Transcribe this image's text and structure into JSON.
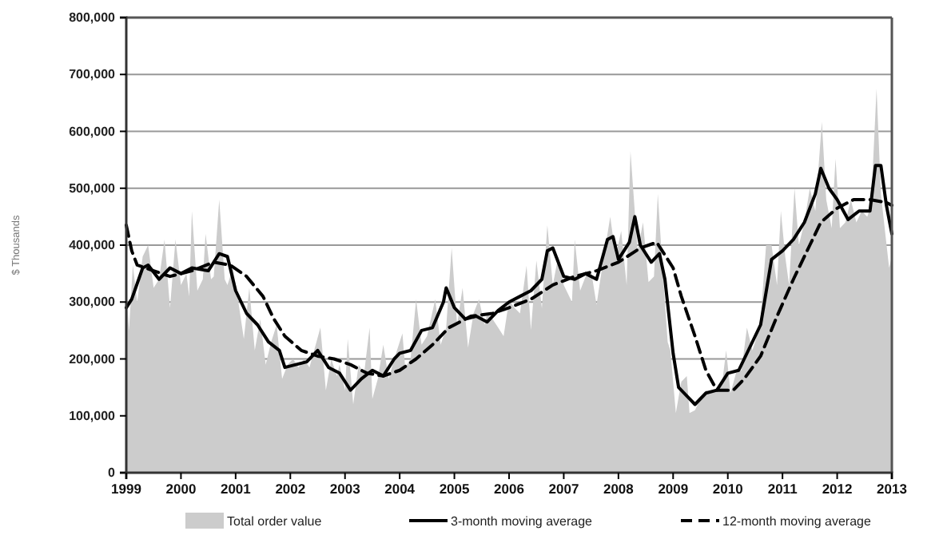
{
  "chart_data": {
    "type": "area",
    "ylabel": "$ Thousands",
    "xlim": [
      1999,
      2013
    ],
    "xticks": [
      1999,
      2000,
      2001,
      2002,
      2003,
      2004,
      2005,
      2006,
      2007,
      2008,
      2009,
      2010,
      2011,
      2012,
      2013
    ],
    "ylim": [
      0,
      800000
    ],
    "yticks": [
      {
        "value": 0,
        "label": "0"
      },
      {
        "value": 100000,
        "label": "100,000"
      },
      {
        "value": 200000,
        "label": "200,000"
      },
      {
        "value": 300000,
        "label": "300,000"
      },
      {
        "value": 400000,
        "label": "400,000"
      },
      {
        "value": 500000,
        "label": "500,000"
      },
      {
        "value": 600000,
        "label": "600,000"
      },
      {
        "value": 700000,
        "label": "700,000"
      },
      {
        "value": 800000,
        "label": "800,000"
      }
    ],
    "grid": "y",
    "legend": "bottom",
    "series": [
      {
        "name": "Total order value",
        "type": "area",
        "color": "#cccccc",
        "x": [
          1999,
          1999.05,
          1999.12,
          1999.2,
          1999.3,
          1999.4,
          1999.5,
          1999.6,
          1999.7,
          1999.8,
          1999.9,
          2000,
          2000.1,
          2000.15,
          2000.2,
          2000.3,
          2000.4,
          2000.45,
          2000.55,
          2000.6,
          2000.7,
          2000.8,
          2000.85,
          2000.95,
          2001.05,
          2001.15,
          2001.25,
          2001.35,
          2001.45,
          2001.55,
          2001.65,
          2001.75,
          2001.85,
          2001.95,
          2002.05,
          2002.15,
          2002.25,
          2002.35,
          2002.45,
          2002.55,
          2002.65,
          2002.75,
          2002.85,
          2002.9,
          2003,
          2003.05,
          2003.15,
          2003.25,
          2003.35,
          2003.45,
          2003.5,
          2003.6,
          2003.7,
          2003.8,
          2003.9,
          2004.05,
          2004.1,
          2004.2,
          2004.3,
          2004.4,
          2004.5,
          2004.65,
          2004.75,
          2004.85,
          2004.95,
          2005.05,
          2005.15,
          2005.25,
          2005.35,
          2005.45,
          2005.55,
          2005.6,
          2005.7,
          2005.8,
          2005.9,
          2006,
          2006.1,
          2006.2,
          2006.32,
          2006.4,
          2006.5,
          2006.6,
          2006.7,
          2006.8,
          2006.9,
          2007,
          2007.15,
          2007.2,
          2007.3,
          2007.4,
          2007.5,
          2007.6,
          2007.7,
          2007.85,
          2007.95,
          2008.05,
          2008.15,
          2008.22,
          2008.35,
          2008.45,
          2008.55,
          2008.65,
          2008.72,
          2008.8,
          2008.9,
          2008.95,
          2009.05,
          2009.15,
          2009.25,
          2009.3,
          2009.4,
          2009.5,
          2009.6,
          2009.7,
          2009.8,
          2009.9,
          2009.97,
          2010.05,
          2010.15,
          2010.25,
          2010.35,
          2010.45,
          2010.5,
          2010.6,
          2010.7,
          2010.8,
          2010.9,
          2010.97,
          2011.05,
          2011.12,
          2011.22,
          2011.3,
          2011.4,
          2011.5,
          2011.6,
          2011.72,
          2011.8,
          2011.9,
          2011.97,
          2012.05,
          2012.15,
          2012.25,
          2012.35,
          2012.45,
          2012.55,
          2012.62,
          2012.72,
          2012.8,
          2012.88,
          2012.95,
          2013
        ],
        "values": [
          325000,
          250000,
          365000,
          300000,
          380000,
          400000,
          325000,
          340000,
          410000,
          290000,
          410000,
          330000,
          350000,
          310000,
          460000,
          320000,
          340000,
          420000,
          340000,
          345000,
          480000,
          340000,
          330000,
          360000,
          300000,
          235000,
          325000,
          215000,
          270000,
          190000,
          230000,
          260000,
          165000,
          190000,
          200000,
          185000,
          200000,
          185000,
          220000,
          255000,
          145000,
          200000,
          170000,
          190000,
          145000,
          235000,
          120000,
          190000,
          175000,
          255000,
          130000,
          165000,
          225000,
          165000,
          200000,
          245000,
          185000,
          200000,
          305000,
          225000,
          240000,
          305000,
          225000,
          255000,
          395000,
          260000,
          325000,
          220000,
          280000,
          305000,
          260000,
          280000,
          270000,
          255000,
          240000,
          303000,
          290000,
          280000,
          364000,
          251000,
          373000,
          289000,
          435000,
          330000,
          380000,
          330000,
          300000,
          410000,
          320000,
          345000,
          355000,
          295000,
          360000,
          450000,
          380000,
          425000,
          330000,
          565000,
          390000,
          440000,
          335000,
          345000,
          490000,
          370000,
          230000,
          215000,
          105000,
          160000,
          170000,
          105000,
          110000,
          130000,
          145000,
          140000,
          150000,
          160000,
          215000,
          140000,
          175000,
          180000,
          255000,
          215000,
          230000,
          270000,
          400000,
          400000,
          330000,
          460000,
          380000,
          330000,
          500000,
          400000,
          440000,
          500000,
          460000,
          617000,
          480000,
          430000,
          552000,
          430000,
          440000,
          480000,
          440000,
          460000,
          450000,
          470000,
          675000,
          490000,
          420000,
          360000,
          380000
        ]
      },
      {
        "name": "3-month moving average",
        "type": "line",
        "color": "#000000",
        "line_style": "solid",
        "x": [
          1999,
          1999.1,
          1999.3,
          1999.4,
          1999.6,
          1999.8,
          2000,
          2000.2,
          2000.5,
          2000.7,
          2000.85,
          2001,
          2001.2,
          2001.4,
          2001.6,
          2001.8,
          2001.9,
          2002.1,
          2002.3,
          2002.5,
          2002.7,
          2002.9,
          2003,
          2003.1,
          2003.3,
          2003.5,
          2003.7,
          2003.9,
          2004,
          2004.2,
          2004.4,
          2004.6,
          2004.8,
          2004.85,
          2005,
          2005.2,
          2005.4,
          2005.6,
          2005.8,
          2006,
          2006.2,
          2006.4,
          2006.6,
          2006.7,
          2006.8,
          2007,
          2007.2,
          2007.4,
          2007.6,
          2007.8,
          2007.9,
          2008,
          2008.2,
          2008.3,
          2008.4,
          2008.6,
          2008.75,
          2008.85,
          2009,
          2009.1,
          2009.3,
          2009.4,
          2009.6,
          2009.8,
          2010,
          2010.2,
          2010.4,
          2010.6,
          2010.8,
          2011,
          2011.2,
          2011.4,
          2011.6,
          2011.7,
          2011.85,
          2012,
          2012.2,
          2012.4,
          2012.6,
          2012.7,
          2012.8,
          2012.9,
          2013
        ],
        "values": [
          290000,
          305000,
          360000,
          365000,
          340000,
          360000,
          350000,
          360000,
          355000,
          385000,
          380000,
          320000,
          280000,
          260000,
          230000,
          215000,
          185000,
          190000,
          195000,
          215000,
          185000,
          175000,
          160000,
          145000,
          165000,
          180000,
          170000,
          200000,
          210000,
          215000,
          250000,
          255000,
          300000,
          325000,
          290000,
          270000,
          275000,
          265000,
          285000,
          300000,
          310000,
          320000,
          340000,
          390000,
          395000,
          345000,
          340000,
          350000,
          340000,
          410000,
          415000,
          375000,
          405000,
          450000,
          400000,
          370000,
          385000,
          340000,
          210000,
          150000,
          130000,
          120000,
          140000,
          145000,
          175000,
          180000,
          220000,
          260000,
          375000,
          390000,
          410000,
          440000,
          490000,
          535000,
          500000,
          480000,
          445000,
          460000,
          460000,
          540000,
          540000,
          470000,
          420000
        ]
      },
      {
        "name": "12-month moving average",
        "type": "line",
        "color": "#000000",
        "line_style": "dashed",
        "x": [
          1999,
          1999.1,
          1999.2,
          1999.5,
          1999.8,
          2000.2,
          2000.6,
          2000.9,
          2001.2,
          2001.5,
          2001.7,
          2001.9,
          2002.2,
          2002.5,
          2002.8,
          2003.1,
          2003.4,
          2003.7,
          2004,
          2004.3,
          2004.6,
          2004.9,
          2005.3,
          2005.7,
          2006,
          2006.4,
          2006.8,
          2007.2,
          2007.6,
          2008,
          2008.4,
          2008.7,
          2009,
          2009.15,
          2009.4,
          2009.6,
          2009.8,
          2010.1,
          2010.3,
          2010.6,
          2010.9,
          2011.2,
          2011.5,
          2011.7,
          2012,
          2012.3,
          2012.6,
          2012.9,
          2013
        ],
        "values": [
          435000,
          390000,
          365000,
          355000,
          345000,
          355000,
          370000,
          365000,
          345000,
          310000,
          270000,
          240000,
          215000,
          205000,
          200000,
          190000,
          175000,
          170000,
          180000,
          200000,
          225000,
          255000,
          275000,
          280000,
          290000,
          305000,
          330000,
          345000,
          355000,
          370000,
          395000,
          405000,
          360000,
          310000,
          240000,
          180000,
          145000,
          145000,
          165000,
          205000,
          275000,
          340000,
          400000,
          440000,
          465000,
          480000,
          480000,
          475000,
          470000
        ]
      }
    ]
  }
}
